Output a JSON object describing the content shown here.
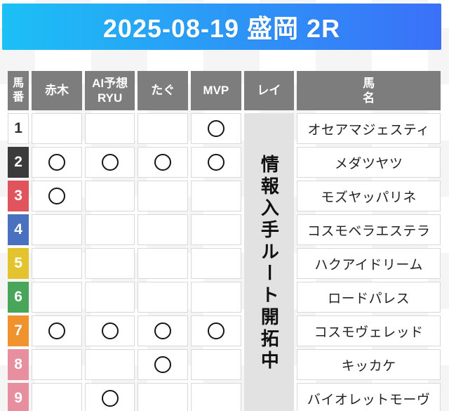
{
  "banner": {
    "title": "2025-08-19 盛岡 2R",
    "gradient_left": "#1cc0f6",
    "gradient_right": "#3b70f8",
    "text_color": "#ffffff"
  },
  "table": {
    "header_bg": "#7d7d7d",
    "header_text_color": "#ffffff",
    "columns": [
      {
        "key": "num",
        "label": "馬\n番"
      },
      {
        "key": "akagi",
        "label": "赤木"
      },
      {
        "key": "ai_ryu",
        "label": "AI予想\nRYU"
      },
      {
        "key": "tagu",
        "label": "たぐ"
      },
      {
        "key": "mvp",
        "label": "MVP"
      },
      {
        "key": "rei",
        "label": "レイ"
      },
      {
        "key": "name",
        "label": "馬\n名"
      }
    ],
    "mark_symbol": "○",
    "mark_color": "#151515",
    "rei_notice": {
      "text": "情報入手ルート開拓中",
      "bg": "#e2e2e2",
      "text_color": "#111111"
    },
    "rows": [
      {
        "num": "1",
        "num_bg": "#ffffff",
        "num_color": "#333333",
        "marks": {
          "akagi": false,
          "ai_ryu": false,
          "tagu": false,
          "mvp": true
        },
        "name": "オセアマジェスティ"
      },
      {
        "num": "2",
        "num_bg": "#3b3b3b",
        "num_color": "#ffffff",
        "marks": {
          "akagi": true,
          "ai_ryu": true,
          "tagu": true,
          "mvp": true
        },
        "name": "メダツヤツ"
      },
      {
        "num": "3",
        "num_bg": "#e0545e",
        "num_color": "#ffffff",
        "marks": {
          "akagi": true,
          "ai_ryu": false,
          "tagu": false,
          "mvp": false
        },
        "name": "モズヤッパリネ"
      },
      {
        "num": "4",
        "num_bg": "#4a71c0",
        "num_color": "#ffffff",
        "marks": {
          "akagi": false,
          "ai_ryu": false,
          "tagu": false,
          "mvp": false
        },
        "name": "コスモベラエステラ"
      },
      {
        "num": "5",
        "num_bg": "#e3c32e",
        "num_color": "#ffffff",
        "marks": {
          "akagi": false,
          "ai_ryu": false,
          "tagu": false,
          "mvp": false
        },
        "name": "ハクアイドリーム"
      },
      {
        "num": "6",
        "num_bg": "#48a65a",
        "num_color": "#ffffff",
        "marks": {
          "akagi": false,
          "ai_ryu": false,
          "tagu": false,
          "mvp": false
        },
        "name": "ロードパレス"
      },
      {
        "num": "7",
        "num_bg": "#f0932e",
        "num_color": "#ffffff",
        "marks": {
          "akagi": true,
          "ai_ryu": true,
          "tagu": true,
          "mvp": true
        },
        "name": "コスモヴェレッド"
      },
      {
        "num": "8",
        "num_bg": "#e88f9f",
        "num_color": "#ffffff",
        "marks": {
          "akagi": false,
          "ai_ryu": false,
          "tagu": true,
          "mvp": false
        },
        "name": "キッカケ"
      },
      {
        "num": "9",
        "num_bg": "#e88f9f",
        "num_color": "#ffffff",
        "marks": {
          "akagi": false,
          "ai_ryu": true,
          "tagu": false,
          "mvp": false
        },
        "name": "バイオレットモーヴ"
      }
    ]
  }
}
